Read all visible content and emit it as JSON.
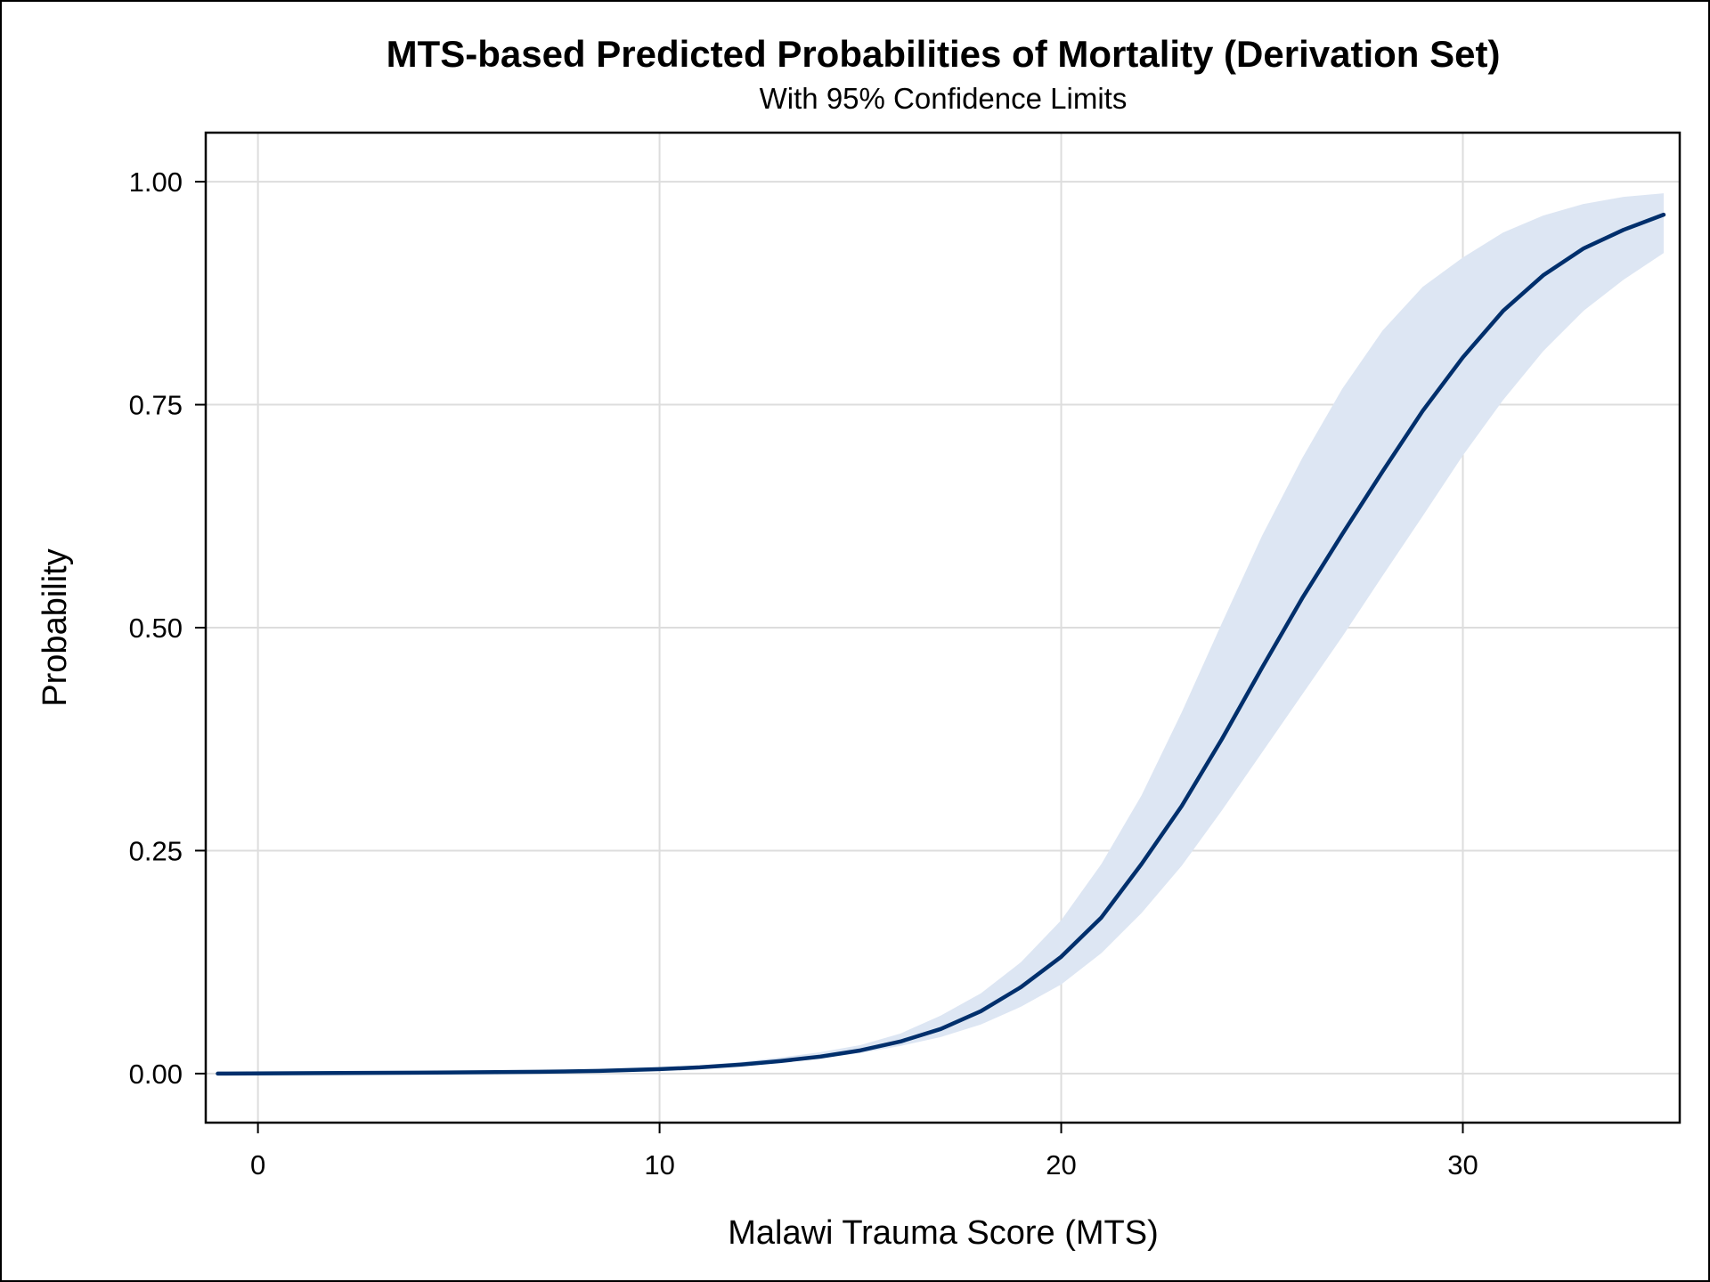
{
  "chart_data": {
    "type": "line",
    "title": "MTS-based Predicted Probabilities of Mortality (Derivation Set)",
    "subtitle": "With 95% Confidence Limits",
    "xlabel": "Malawi Trauma Score (MTS)",
    "ylabel": "Probability",
    "xlim": [
      -1.3,
      35.4
    ],
    "ylim": [
      -0.055,
      1.055
    ],
    "x_ticks": [
      0,
      10,
      20,
      30
    ],
    "x_tick_labels": [
      "0",
      "10",
      "20",
      "30"
    ],
    "y_ticks": [
      0,
      0.25,
      0.5,
      0.75,
      1
    ],
    "y_tick_labels": [
      "0.00",
      "0.25",
      "0.50",
      "0.75",
      "1.00"
    ],
    "grid": true,
    "colors": {
      "line": "#002f6c",
      "band": "#dde6f3",
      "grid": "#dddddd",
      "frame": "#000000"
    },
    "series": [
      {
        "kind": "line",
        "x": [
          -1,
          4,
          7,
          8.5,
          10,
          11,
          12,
          13,
          14,
          15,
          16,
          17,
          18,
          19,
          20,
          21,
          22,
          23,
          24,
          25,
          26,
          27,
          28,
          29,
          30,
          31,
          32,
          33,
          34,
          35
        ],
        "y": [
          0.0,
          0.001,
          0.002,
          0.003,
          0.005,
          0.007,
          0.01,
          0.014,
          0.019,
          0.026,
          0.036,
          0.05,
          0.07,
          0.097,
          0.131,
          0.175,
          0.235,
          0.3,
          0.375,
          0.455,
          0.533,
          0.605,
          0.675,
          0.743,
          0.803,
          0.855,
          0.895,
          0.925,
          0.946,
          0.963
        ]
      },
      {
        "kind": "band",
        "x": [
          10,
          11,
          12,
          13,
          14,
          15,
          16,
          17,
          18,
          19,
          20,
          21,
          22,
          23,
          24,
          25,
          26,
          27,
          28,
          29,
          30,
          31,
          32,
          33,
          34,
          35
        ],
        "lower": [
          0.004,
          0.006,
          0.008,
          0.012,
          0.017,
          0.023,
          0.031,
          0.041,
          0.055,
          0.075,
          0.1,
          0.135,
          0.18,
          0.233,
          0.295,
          0.36,
          0.425,
          0.49,
          0.558,
          0.625,
          0.693,
          0.755,
          0.81,
          0.855,
          0.89,
          0.92
        ],
        "upper": [
          0.006,
          0.009,
          0.013,
          0.018,
          0.024,
          0.032,
          0.045,
          0.065,
          0.09,
          0.125,
          0.172,
          0.235,
          0.312,
          0.405,
          0.505,
          0.603,
          0.69,
          0.768,
          0.833,
          0.882,
          0.915,
          0.943,
          0.962,
          0.975,
          0.983,
          0.987
        ]
      }
    ]
  }
}
